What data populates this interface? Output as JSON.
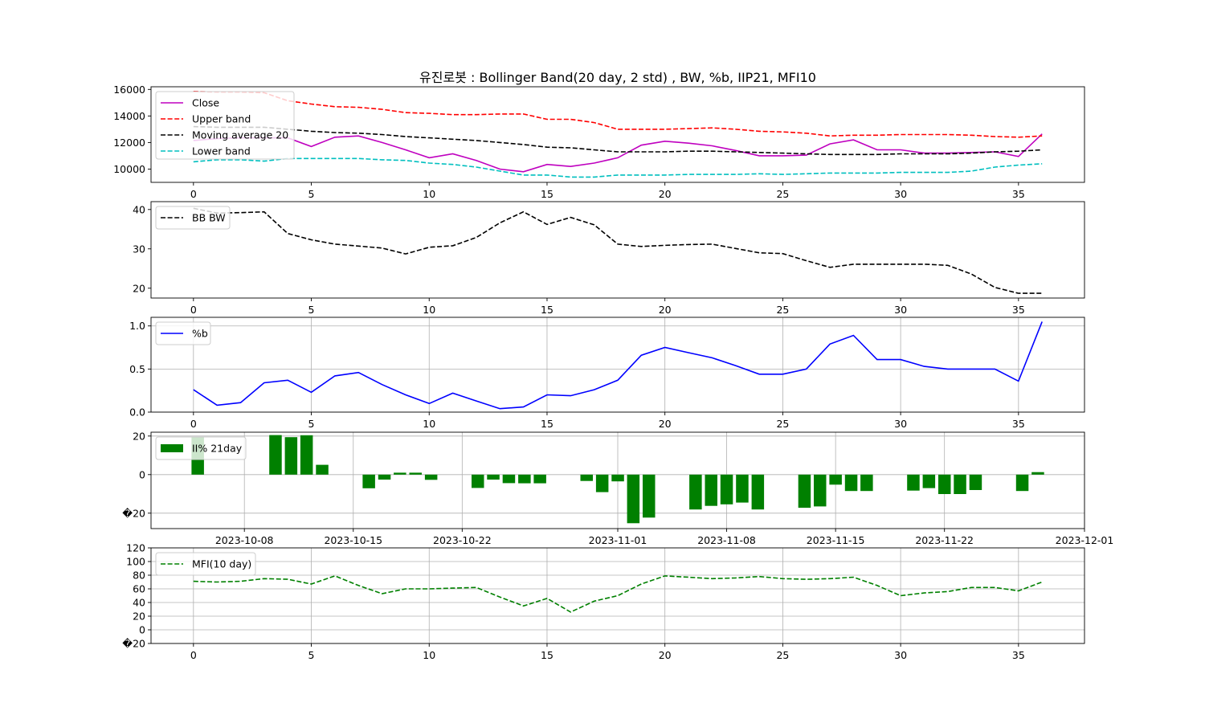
{
  "title": "유진로봇 : Bollinger Band(20 day, 2 std) , BW, %b, IIP21, MFI10",
  "chart_data": [
    {
      "type": "line",
      "name": "bollinger",
      "x": [
        0,
        1,
        2,
        3,
        4,
        5,
        6,
        7,
        8,
        9,
        10,
        11,
        12,
        13,
        14,
        15,
        16,
        17,
        18,
        19,
        20,
        21,
        22,
        23,
        24,
        25,
        26,
        27,
        28,
        29,
        30,
        31,
        32,
        33,
        34,
        35,
        36
      ],
      "xlim": [
        -1.8,
        37.8
      ],
      "ylim": [
        9000,
        16200
      ],
      "xticks": [
        0,
        5,
        10,
        15,
        20,
        25,
        30,
        35
      ],
      "yticks": [
        10000,
        12000,
        14000,
        16000
      ],
      "legend_position": "upper-left",
      "series": [
        {
          "name": "Close",
          "color": "#bf00bf",
          "dash": "solid",
          "values": [
            12150,
            12300,
            12350,
            12350,
            12350,
            11700,
            12400,
            12500,
            12000,
            11450,
            10850,
            11150,
            10650,
            10000,
            9800,
            10350,
            10200,
            10450,
            10850,
            11800,
            12100,
            11950,
            11750,
            11400,
            11000,
            11000,
            11050,
            11900,
            12200,
            11450,
            11450,
            11200,
            11200,
            11250,
            11300,
            10950,
            12650
          ]
        },
        {
          "name": "Upper band",
          "color": "#ff0000",
          "dash": "dashed",
          "values": [
            15850,
            15800,
            15800,
            15750,
            15150,
            14900,
            14700,
            14650,
            14500,
            14250,
            14200,
            14100,
            14100,
            14150,
            14150,
            13750,
            13750,
            13500,
            13000,
            13000,
            13000,
            13050,
            13100,
            13000,
            12850,
            12800,
            12700,
            12500,
            12550,
            12550,
            12600,
            12600,
            12600,
            12550,
            12450,
            12400,
            12500
          ]
        },
        {
          "name": "Moving average 20",
          "color": "#000000",
          "dash": "dashed",
          "values": [
            13200,
            13150,
            13150,
            13150,
            13000,
            12850,
            12750,
            12700,
            12600,
            12450,
            12350,
            12250,
            12150,
            12000,
            11850,
            11650,
            11600,
            11450,
            11300,
            11300,
            11300,
            11350,
            11350,
            11300,
            11250,
            11200,
            11150,
            11100,
            11100,
            11100,
            11150,
            11150,
            11150,
            11200,
            11300,
            11350,
            11450
          ]
        },
        {
          "name": "Lower band",
          "color": "#00bfbf",
          "dash": "dashed",
          "values": [
            10550,
            10700,
            10700,
            10600,
            10800,
            10800,
            10800,
            10800,
            10700,
            10650,
            10450,
            10350,
            10150,
            9850,
            9550,
            9550,
            9400,
            9400,
            9550,
            9550,
            9550,
            9600,
            9600,
            9600,
            9650,
            9600,
            9650,
            9700,
            9700,
            9700,
            9750,
            9750,
            9750,
            9850,
            10150,
            10300,
            10400
          ]
        }
      ]
    },
    {
      "type": "line",
      "name": "bb-bw",
      "x": [
        0,
        1,
        2,
        3,
        4,
        5,
        6,
        7,
        8,
        9,
        10,
        11,
        12,
        13,
        14,
        15,
        16,
        17,
        18,
        19,
        20,
        21,
        22,
        23,
        24,
        25,
        26,
        27,
        28,
        29,
        30,
        31,
        32,
        33,
        34,
        35,
        36
      ],
      "xlim": [
        -1.8,
        37.8
      ],
      "ylim": [
        17.5,
        42
      ],
      "xticks": [
        0,
        5,
        10,
        15,
        20,
        25,
        30,
        35
      ],
      "yticks": [
        20,
        30,
        40
      ],
      "legend_position": "upper-left",
      "series": [
        {
          "name": "BB BW",
          "color": "#000000",
          "dash": "dashed",
          "values": [
            40.3,
            39.1,
            39.2,
            39.4,
            33.9,
            32.3,
            31.2,
            30.7,
            30.2,
            28.7,
            30.4,
            30.8,
            32.9,
            36.6,
            39.4,
            36.2,
            38.0,
            36.1,
            31.2,
            30.6,
            30.9,
            31.1,
            31.2,
            30.1,
            29.0,
            28.8,
            27.0,
            25.3,
            26.1,
            26.1,
            26.1,
            26.1,
            25.8,
            23.6,
            20.2,
            18.7,
            18.7
          ]
        }
      ]
    },
    {
      "type": "line",
      "name": "percent-b",
      "x": [
        0,
        1,
        2,
        3,
        4,
        5,
        6,
        7,
        8,
        9,
        10,
        11,
        12,
        13,
        14,
        15,
        16,
        17,
        18,
        19,
        20,
        21,
        22,
        23,
        24,
        25,
        26,
        27,
        28,
        29,
        30,
        31,
        32,
        33,
        34,
        35,
        36
      ],
      "xlim": [
        -1.8,
        37.8
      ],
      "ylim": [
        0,
        1.1
      ],
      "xticks": [
        0,
        5,
        10,
        15,
        20,
        25,
        30,
        35
      ],
      "yticks": [
        0.0,
        0.5,
        1.0
      ],
      "ytick_labels": [
        "0.0",
        "0.5",
        "1.0"
      ],
      "grid": true,
      "legend_position": "upper-left",
      "series": [
        {
          "name": "%b",
          "color": "#0000ff",
          "dash": "solid",
          "values": [
            0.26,
            0.08,
            0.11,
            0.34,
            0.37,
            0.23,
            0.42,
            0.46,
            0.32,
            0.2,
            0.1,
            0.22,
            0.13,
            0.04,
            0.06,
            0.2,
            0.19,
            0.26,
            0.37,
            0.66,
            0.75,
            0.69,
            0.63,
            0.54,
            0.44,
            0.44,
            0.5,
            0.79,
            0.89,
            0.61,
            0.61,
            0.53,
            0.5,
            0.5,
            0.5,
            0.36,
            1.05
          ]
        }
      ]
    },
    {
      "type": "bar",
      "name": "ii-percent",
      "dates": [
        "2023-10-05",
        "2023-10-06",
        "2023-10-10",
        "2023-10-11",
        "2023-10-12",
        "2023-10-13",
        "2023-10-16",
        "2023-10-17",
        "2023-10-18",
        "2023-10-19",
        "2023-10-20",
        "2023-10-23",
        "2023-10-24",
        "2023-10-25",
        "2023-10-26",
        "2023-10-27",
        "2023-10-30",
        "2023-10-31",
        "2023-11-01",
        "2023-11-02",
        "2023-11-03",
        "2023-11-06",
        "2023-11-07",
        "2023-11-08",
        "2023-11-09",
        "2023-11-10",
        "2023-11-13",
        "2023-11-14",
        "2023-11-15",
        "2023-11-16",
        "2023-11-17",
        "2023-11-20",
        "2023-11-21",
        "2023-11-22",
        "2023-11-23",
        "2023-11-24",
        "2023-11-27",
        "2023-11-28"
      ],
      "values": [
        19.7,
        0,
        20.5,
        19.4,
        20.4,
        5.1,
        -7.1,
        -2.6,
        1.0,
        1.0,
        -2.7,
        -6.9,
        -2.6,
        -4.4,
        -4.5,
        -4.5,
        -3.3,
        -9.1,
        -3.5,
        -25.2,
        -22.3,
        -18.1,
        -16.2,
        -15.4,
        -14.5,
        -18.1,
        -17.2,
        -16.5,
        -5.2,
        -8.5,
        -8.5,
        -8.3,
        -7.0,
        -10.1,
        -10.1,
        -8.0,
        -8.5,
        1.3
      ],
      "xlim": [
        "2023-10-02",
        "2023-12-01"
      ],
      "ylim": [
        -28,
        22
      ],
      "yticks": [
        -20,
        0,
        20
      ],
      "ytick_labels": [
        "�20",
        "0",
        "20"
      ],
      "xtick_dates": [
        "2023-10-08",
        "2023-10-15",
        "2023-10-22",
        "2023-11-01",
        "2023-11-08",
        "2023-11-15",
        "2023-11-22",
        "2023-12-01"
      ],
      "grid": true,
      "color": "#008000",
      "legend_position": "upper-left",
      "series": [
        {
          "name": "II% 21day"
        }
      ]
    },
    {
      "type": "line",
      "name": "mfi",
      "x": [
        0,
        1,
        2,
        3,
        4,
        5,
        6,
        7,
        8,
        9,
        10,
        11,
        12,
        13,
        14,
        15,
        16,
        17,
        18,
        19,
        20,
        21,
        22,
        23,
        24,
        25,
        26,
        27,
        28,
        29,
        30,
        31,
        32,
        33,
        34,
        35,
        36
      ],
      "xlim": [
        -1.8,
        37.8
      ],
      "ylim": [
        -20,
        120
      ],
      "xticks": [
        0,
        5,
        10,
        15,
        20,
        25,
        30,
        35
      ],
      "yticks": [
        -20,
        0,
        20,
        40,
        60,
        80,
        100,
        120
      ],
      "ytick_labels": [
        "�20",
        "0",
        "20",
        "40",
        "60",
        "80",
        "100",
        "120"
      ],
      "grid": true,
      "legend_position": "upper-left",
      "series": [
        {
          "name": "MFI(10 day)",
          "color": "#008000",
          "dash": "dashed",
          "values": [
            71,
            70,
            71,
            75,
            74,
            67,
            79,
            65,
            53,
            60,
            60,
            61,
            62,
            48,
            35,
            46,
            26,
            42,
            50,
            67,
            79,
            77,
            75,
            76,
            78,
            75,
            74,
            75,
            77,
            65,
            50,
            54,
            56,
            62,
            62,
            57,
            70
          ]
        }
      ]
    }
  ]
}
